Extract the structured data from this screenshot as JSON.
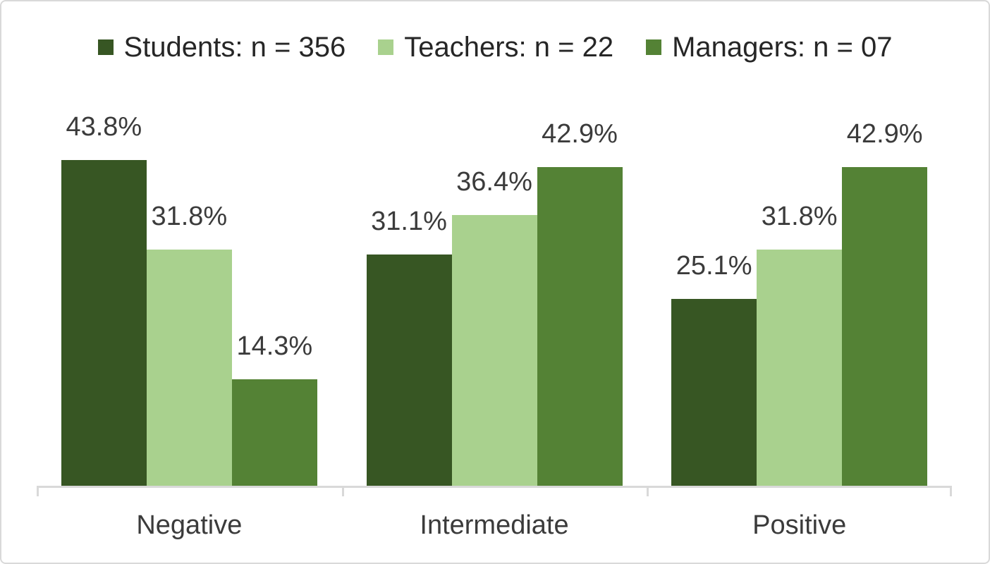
{
  "chart_data": {
    "type": "bar",
    "title": "",
    "xlabel": "",
    "ylabel": "",
    "categories": [
      "Negative",
      "Intermediate",
      "Positive"
    ],
    "series": [
      {
        "name": "Students: n = 356",
        "color": "#375623",
        "values": [
          43.8,
          31.1,
          25.1
        ],
        "labels": [
          "43.8%",
          "31.1%",
          "25.1%"
        ]
      },
      {
        "name": "Teachers: n = 22",
        "color": "#A9D18E",
        "values": [
          31.8,
          36.4,
          31.8
        ],
        "labels": [
          "31.8%",
          "36.4%",
          "31.8%"
        ]
      },
      {
        "name": "Managers: n = 07",
        "color": "#548235",
        "values": [
          14.3,
          42.9,
          42.9
        ],
        "labels": [
          "14.3%",
          "42.9%",
          "42.9%"
        ]
      }
    ],
    "ylim": [
      0,
      50
    ],
    "grid": false,
    "y_axis_visible": false,
    "data_labels_visible": true,
    "legend_position": "top",
    "value_suffix": "%"
  },
  "legend": {
    "items": [
      {
        "label": "Students: n = 356",
        "swatch_color": "#375623"
      },
      {
        "label": "Teachers: n = 22",
        "swatch_color": "#A9D18E"
      },
      {
        "label": "Managers: n = 07",
        "swatch_color": "#548235"
      }
    ]
  },
  "colors": {
    "series_dark_green": "#375623",
    "series_light_green": "#A9D18E",
    "series_medium_green": "#548235",
    "axis_line": "#D9D9D9",
    "label_text": "#3B3B3B",
    "frame_border": "#D9D9D9",
    "background": "#FFFFFF"
  }
}
